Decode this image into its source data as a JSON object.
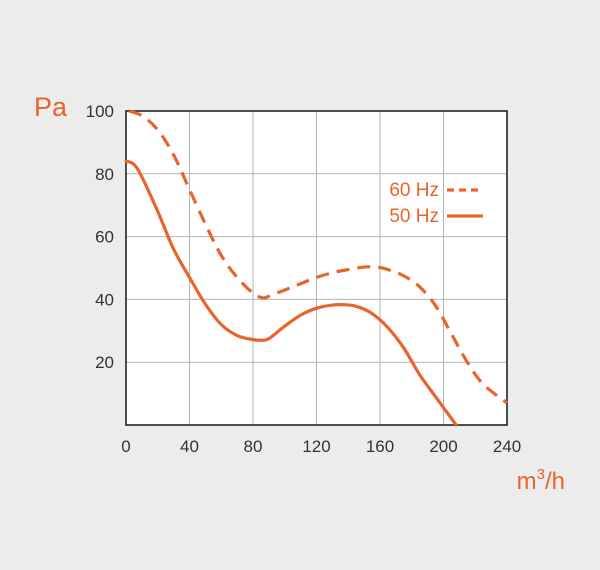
{
  "chart_data": {
    "type": "line",
    "title": "",
    "xlabel": "m³/h",
    "ylabel": "Pa",
    "xlim": [
      0,
      240
    ],
    "ylim": [
      0,
      100
    ],
    "xticks": [
      "0",
      "40",
      "80",
      "120",
      "160",
      "200",
      "240"
    ],
    "yticks": [
      "20",
      "40",
      "60",
      "80",
      "100"
    ],
    "grid": true,
    "legend_position": "top-right",
    "series": [
      {
        "name": "60 Hz",
        "style": "dashed",
        "color": "#e8642c",
        "x": [
          2,
          10,
          20,
          30,
          40,
          50,
          60,
          70,
          80,
          86,
          90,
          100,
          110,
          120,
          130,
          140,
          150,
          158,
          165,
          175,
          185,
          195,
          205,
          215,
          225,
          240
        ],
        "y": [
          100,
          98.5,
          94,
          86,
          75,
          64,
          54,
          47,
          42,
          40.5,
          41,
          43,
          45,
          47,
          48.5,
          49.5,
          50.3,
          50.3,
          49.5,
          47.5,
          44,
          38,
          29,
          20,
          13,
          7
        ]
      },
      {
        "name": "50 Hz",
        "style": "solid",
        "color": "#e8642c",
        "x": [
          0,
          5,
          10,
          20,
          30,
          40,
          50,
          60,
          70,
          80,
          85,
          90,
          100,
          110,
          120,
          130,
          137,
          145,
          155,
          165,
          175,
          185,
          195,
          208
        ],
        "y": [
          84,
          83,
          79,
          68,
          56,
          47,
          38.5,
          32,
          28.5,
          27.2,
          27,
          27.5,
          31.5,
          35,
          37.2,
          38.2,
          38.3,
          37.8,
          35.5,
          31,
          24.5,
          16,
          9,
          0
        ]
      }
    ],
    "colors": {
      "accent": "#e8642c",
      "background": "#ececec",
      "plot_background": "#ffffff",
      "grid": "#b3b3b3"
    }
  }
}
